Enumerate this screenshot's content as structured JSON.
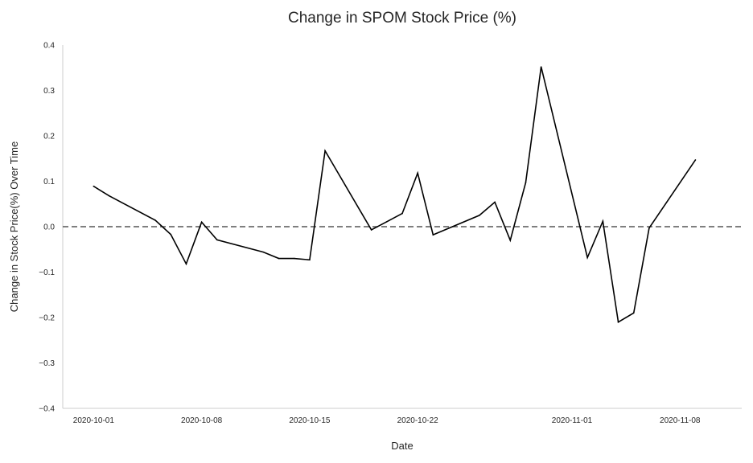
{
  "chart_data": {
    "type": "line",
    "title": "Change in SPOM Stock Price (%)",
    "xlabel": "Date",
    "ylabel": "Change in Stock Price(%) Over Time",
    "x_type": "date",
    "xlim": [
      "2020-09-29",
      "2020-11-12"
    ],
    "ylim": [
      -0.4,
      0.4
    ],
    "yticks": [
      "-0.4",
      "-0.3",
      "-0.2",
      "-0.1",
      "0.0",
      "0.1",
      "0.2",
      "0.3",
      "0.4"
    ],
    "xticks": [
      "2020-10-01",
      "2020-10-08",
      "2020-10-15",
      "2020-10-22",
      "2020-11-01",
      "2020-11-08"
    ],
    "grid": false,
    "reference_line": {
      "y": 0.0,
      "style": "dashed",
      "color": "#555555"
    },
    "series": [
      {
        "color": "#000000",
        "points": [
          {
            "x": "2020-10-01",
            "y": 0.089
          },
          {
            "x": "2020-10-02",
            "y": 0.068
          },
          {
            "x": "2020-10-05",
            "y": 0.014
          },
          {
            "x": "2020-10-06",
            "y": -0.017
          },
          {
            "x": "2020-10-07",
            "y": -0.082
          },
          {
            "x": "2020-10-08",
            "y": 0.01
          },
          {
            "x": "2020-10-09",
            "y": -0.029
          },
          {
            "x": "2020-10-12",
            "y": -0.056
          },
          {
            "x": "2020-10-13",
            "y": -0.07
          },
          {
            "x": "2020-10-14",
            "y": -0.07
          },
          {
            "x": "2020-10-15",
            "y": -0.073
          },
          {
            "x": "2020-10-16",
            "y": 0.167
          },
          {
            "x": "2020-10-19",
            "y": -0.007
          },
          {
            "x": "2020-10-20",
            "y": 0.011
          },
          {
            "x": "2020-10-21",
            "y": 0.029
          },
          {
            "x": "2020-10-22",
            "y": 0.118
          },
          {
            "x": "2020-10-23",
            "y": -0.018
          },
          {
            "x": "2020-10-26",
            "y": 0.025
          },
          {
            "x": "2020-10-27",
            "y": 0.054
          },
          {
            "x": "2020-10-28",
            "y": -0.03
          },
          {
            "x": "2020-10-29",
            "y": 0.097
          },
          {
            "x": "2020-10-30",
            "y": 0.352
          },
          {
            "x": "2020-11-02",
            "y": -0.068
          },
          {
            "x": "2020-11-03",
            "y": 0.012
          },
          {
            "x": "2020-11-04",
            "y": -0.21
          },
          {
            "x": "2020-11-05",
            "y": -0.19
          },
          {
            "x": "2020-11-06",
            "y": -0.003
          },
          {
            "x": "2020-11-09",
            "y": 0.147
          }
        ]
      }
    ]
  }
}
